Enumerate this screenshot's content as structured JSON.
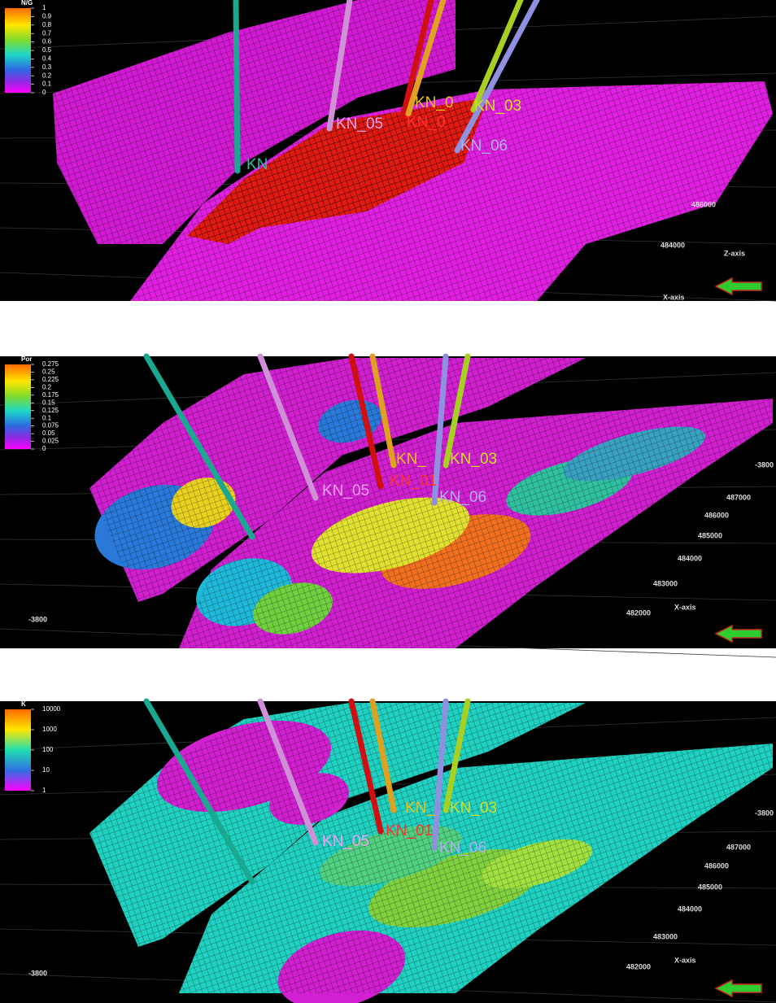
{
  "panels": [
    {
      "legend": {
        "title": "N/G",
        "labels": [
          "1",
          "0.9",
          "0.8",
          "0.7",
          "0.6",
          "0.5",
          "0.4",
          "0.3",
          "0.2",
          "0.1",
          "0"
        ]
      },
      "wells": [
        "KN_0",
        "KN_03",
        "KN_05",
        "KN_0",
        "KN_06",
        "KN"
      ],
      "axis_labels": [
        "486000",
        "484000",
        "Z-axis",
        "X-axis"
      ]
    },
    {
      "legend": {
        "title": "Por",
        "labels": [
          "0.275",
          "0.25",
          "0.225",
          "0.2",
          "0.175",
          "0.15",
          "0.125",
          "0.1",
          "0.075",
          "0.05",
          "0.025",
          "0"
        ]
      },
      "wells": [
        "KN_",
        "KN_03",
        "KN_05",
        "KN_01",
        "KN_06"
      ],
      "axis_labels": [
        "-3800",
        "487000",
        "486000",
        "485000",
        "484000",
        "483000",
        "482000",
        "X-axis",
        "-3800"
      ]
    },
    {
      "legend": {
        "title": "K",
        "labels": [
          "10000",
          "1000",
          "100",
          "10",
          "1"
        ]
      },
      "wells": [
        "KN_",
        "KN_03",
        "KN_05",
        "KN_01",
        "KN_06"
      ],
      "axis_labels": [
        "-3800",
        "487000",
        "486000",
        "485000",
        "484000",
        "483000",
        "482000",
        "X-axis",
        "-3800"
      ]
    }
  ]
}
